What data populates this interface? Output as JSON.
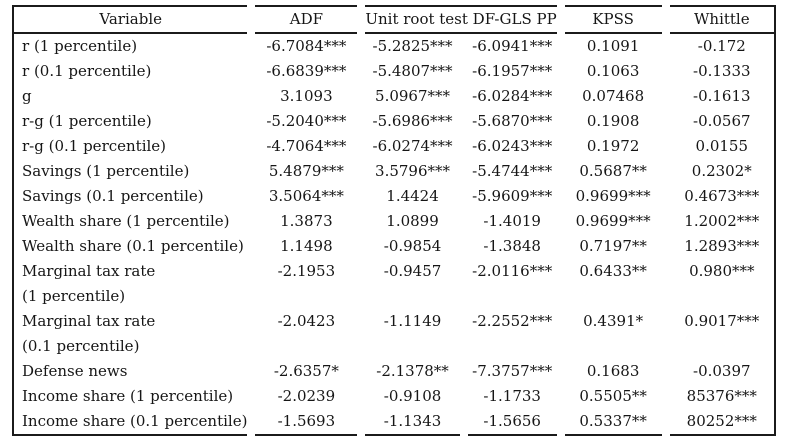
{
  "table": {
    "headers": {
      "variable": "Variable",
      "adf": "ADF",
      "unit_root": "Unit root test DF-GLS PP",
      "kpss": "KPSS",
      "whittle": "Whittle"
    },
    "columns": [
      "Variable",
      "ADF",
      "DF-GLS",
      "PP",
      "KPSS",
      "Whittle"
    ],
    "rows": [
      {
        "label": "r (1 percentile)",
        "values": [
          "-6.7084***",
          "-5.2825***",
          "-6.0941***",
          "0.1091",
          "-0.172"
        ]
      },
      {
        "label": "r (0.1 percentile)",
        "values": [
          "-6.6839***",
          "-5.4807***",
          "-6.1957***",
          "0.1063",
          "-0.1333"
        ]
      },
      {
        "label": "g",
        "values": [
          "3.1093",
          "5.0967***",
          "-6.0284***",
          "0.07468",
          "-0.1613"
        ]
      },
      {
        "label": "r-g (1 percentile)",
        "values": [
          "-5.2040***",
          "-5.6986***",
          "-5.6870***",
          "0.1908",
          "-0.0567"
        ]
      },
      {
        "label": "r-g (0.1 percentile)",
        "values": [
          "-4.7064***",
          "-6.0274***",
          "-6.0243***",
          "0.1972",
          "0.0155"
        ]
      },
      {
        "label": "Savings (1 percentile)",
        "values": [
          "5.4879***",
          "3.5796***",
          "-5.4744***",
          "0.5687**",
          "0.2302*"
        ]
      },
      {
        "label": "Savings (0.1 percentile)",
        "values": [
          "3.5064***",
          "1.4424",
          "-5.9609***",
          "0.9699***",
          "0.4673***"
        ]
      },
      {
        "label": "Wealth share (1 percentile)",
        "values": [
          "1.3873",
          "1.0899",
          "-1.4019",
          "0.9699***",
          "1.2002***"
        ]
      },
      {
        "label": "Wealth share (0.1 percentile)",
        "values": [
          "1.1498",
          "-0.9854",
          "-1.3848",
          "0.7197**",
          "1.2893***"
        ]
      },
      {
        "label": "Marginal tax rate",
        "label2": "(1 percentile)",
        "values": [
          "-2.1953",
          "-0.9457",
          "-2.0116***",
          "0.6433**",
          "0.980***"
        ]
      },
      {
        "label": "Marginal tax rate",
        "label2": "(0.1 percentile)",
        "values": [
          "-2.0423",
          "-1.1149",
          "-2.2552***",
          "0.4391*",
          "0.9017***"
        ]
      },
      {
        "label": "Defense news",
        "values": [
          "-2.6357*",
          "-2.1378**",
          "-7.3757***",
          "0.1683",
          "-0.0397"
        ]
      },
      {
        "label": "Income share (1 percentile)",
        "values": [
          "-2.0239",
          "-0.9108",
          "-1.1733",
          "0.5505**",
          "85376***"
        ]
      },
      {
        "label": "Income share (0.1 percentile)",
        "values": [
          "-1.5693",
          "-1.1343",
          "-1.5656",
          "0.5337**",
          "80252***"
        ]
      }
    ]
  },
  "style": {
    "border_color": "#1b1b1b",
    "text_color": "#161616",
    "background": "#ffffff"
  }
}
